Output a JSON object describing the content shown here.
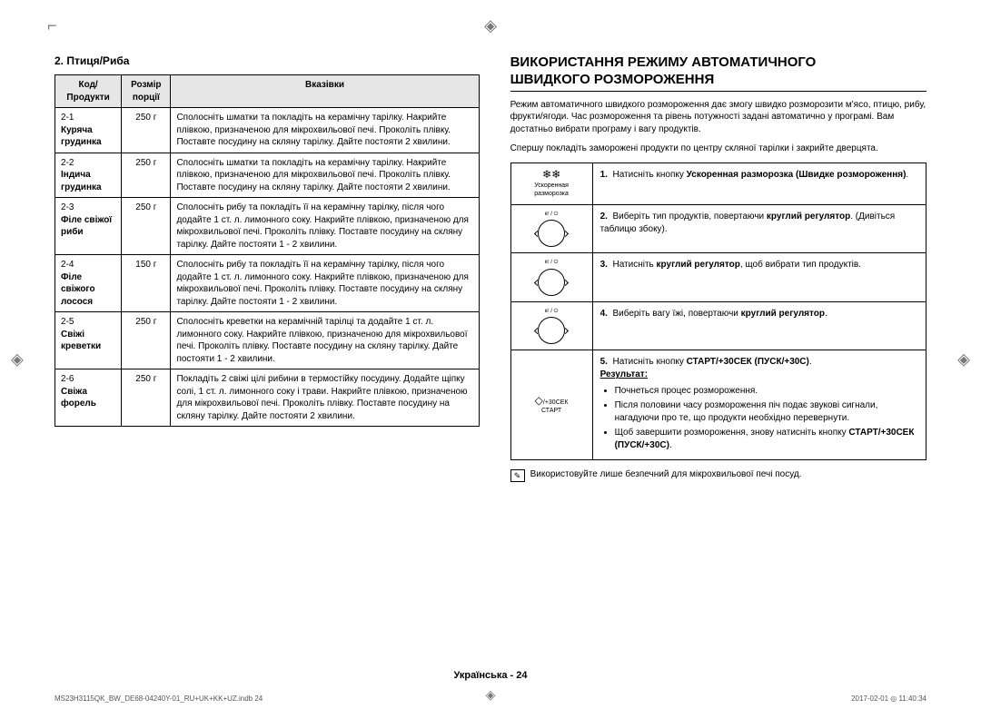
{
  "section_title": "2. Птиця/Риба",
  "table": {
    "headers": [
      "Код/Продукти",
      "Розмір порції",
      "Вказівки"
    ],
    "rows": [
      {
        "code": "2-1",
        "product": "Куряча грудинка",
        "portion": "250 г",
        "instr": "Сполосніть шматки та покладіть на керамічну тарілку. Накрийте плівкою, призначеною для мікрохвильової печі. Проколіть плівку. Поставте посудину на скляну тарілку. Дайте постояти 2 хвилини."
      },
      {
        "code": "2-2",
        "product": "Індича грудинка",
        "portion": "250 г",
        "instr": "Сполосніть шматки та покладіть на керамічну тарілку. Накрийте плівкою, призначеною для мікрохвильової печі. Проколіть плівку. Поставте посудину на скляну тарілку. Дайте постояти 2 хвилини."
      },
      {
        "code": "2-3",
        "product": "Філе свіжої риби",
        "portion": "250 г",
        "instr": "Сполосніть рибу та покладіть її на керамічну тарілку, після чого додайте 1 ст. л. лимонного соку. Накрийте плівкою, призначеною для мікрохвильової печі. Проколіть плівку. Поставте посудину на скляну тарілку. Дайте постояти 1 - 2 хвилини."
      },
      {
        "code": "2-4",
        "product": "Філе свіжого лосося",
        "portion": "150 г",
        "instr": "Сполосніть рибу та покладіть її на керамічну тарілку, після чого додайте 1 ст. л. лимонного соку. Накрийте плівкою, призначеною для мікрохвильової печі. Проколіть плівку. Поставте посудину на скляну тарілку. Дайте постояти 1 - 2 хвилини."
      },
      {
        "code": "2-5",
        "product": "Свіжі креветки",
        "portion": "250 г",
        "instr": "Сполосніть креветки на керамічній тарілці та додайте 1 ст. л. лимонного соку. Накрийте плівкою, призначеною для мікрохвильової печі. Проколіть плівку. Поставте посудину на скляну тарілку. Дайте постояти 1 - 2 хвилини."
      },
      {
        "code": "2-6",
        "product": "Свіжа форель",
        "portion": "250 г",
        "instr": "Покладіть 2 свіжі цілі рибини в термостійку посудину. Додайте щіпку солі, 1 ст. л. лимонного соку і трави. Накрийте плівкою, призначеною для мікрохвильової печі. Проколіть плівку. Поставте посудину на скляну тарілку. Дайте постояти 2 хвилини."
      }
    ]
  },
  "right_title_l1": "ВИКОРИСТАННЯ РЕЖИМУ АВТОМАТИЧНОГО",
  "right_title_l2": "ШВИДКОГО РОЗМОРОЖЕННЯ",
  "intro_p1": "Режим автоматичного швидкого розмороження дає змогу швидко розморозити м'ясо, птицю, рибу, фрукти/ягоди. Час розмороження та рівень потужності задані автоматично у програмі. Вам достатньо вибрати програму і вагу продуктів.",
  "intro_p2": "Спершу покладіть заморожені продукти по центру скляної тарілки і закрийте дверцята.",
  "steps": [
    {
      "icon": "defrost",
      "label": "Ускоренная разморозка",
      "num": "1.",
      "t1": "Натисніть кнопку ",
      "b1": "Ускоренная разморозка (Швидке розмороження)",
      "t2": "."
    },
    {
      "icon": "dial",
      "dial_label": "кг / ⏻",
      "num": "2.",
      "t1": "Виберіть тип продуктів, повертаючи ",
      "b1": "круглий регулятор",
      "t2": ". (Дивіться таблицю збоку)."
    },
    {
      "icon": "dial",
      "dial_label": "кг / ⏻",
      "num": "3.",
      "t1": "Натисніть ",
      "b1": "круглий регулятор",
      "t2": ", щоб вибрати тип продуктів."
    },
    {
      "icon": "dial",
      "dial_label": "кг / ⏻",
      "num": "4.",
      "t1": "Виберіть вагу їжі, повертаючи ",
      "b1": "круглий регулятор",
      "t2": "."
    },
    {
      "icon": "start",
      "label_top": "/+30СЕК",
      "label_bot": "СТАРТ",
      "num": "5.",
      "t1": "Натисніть кнопку ",
      "b1": "СТАРТ/+30СЕК (ПУСК/+30С)",
      "t2": ".",
      "result_label": "Результат:",
      "bullets": [
        "Почнеться процес розмороження.",
        "Після половини часу розмороження піч подає звукові сигнали, нагадуючи про те, що продукти необхідно перевернути.",
        "Щоб завершити розмороження, знову натисніть кнопку СТАРТ/+30СЕК (ПУСК/+30С)."
      ],
      "bold_in_last": "СТАРТ/+30СЕК (ПУСК/+30С)"
    }
  ],
  "note_text": "Використовуйте лише безпечний для мікрохвильової печі посуд.",
  "footer": "Українська - 24",
  "print_left": "MS23H3115QK_BW_DE68-04240Y-01_RU+UK+KK+UZ.indb   24",
  "print_right": "2017-02-01   ◎ 11:40:34"
}
